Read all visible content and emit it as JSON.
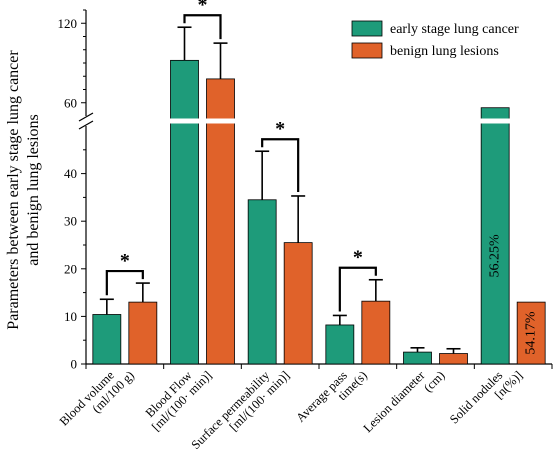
{
  "chart_data": {
    "type": "bar",
    "ylabel_lines": [
      "Parameters between early stage lung cancer",
      "and benign lung lesions"
    ],
    "y_axis": {
      "lower_range": [
        0,
        50
      ],
      "upper_range": [
        50,
        130
      ],
      "break_at": 50,
      "lower_ticks": [
        0,
        10,
        20,
        30,
        40
      ],
      "upper_ticks": [
        60,
        120
      ]
    },
    "categories": [
      {
        "lines": [
          "Blood volume",
          "(ml/100 g)"
        ]
      },
      {
        "lines": [
          "Blood Flow",
          "[ml/(100· min)]"
        ]
      },
      {
        "lines": [
          "Surface permeability",
          "[ml/(100· min)]"
        ]
      },
      {
        "lines": [
          "Average pass",
          "time(s)"
        ]
      },
      {
        "lines": [
          "Lesion diameter",
          "(cm)"
        ]
      },
      {
        "lines": [
          "Solid nodules",
          "[n(%)]"
        ]
      }
    ],
    "series": [
      {
        "name": "early stage lung cancer",
        "color": "#1e9b7a",
        "values": [
          10.4,
          92,
          34.5,
          8.2,
          2.5,
          56.25
        ],
        "errors": [
          3.2,
          25,
          10.2,
          2.0,
          0.9,
          null
        ]
      },
      {
        "name": "benign lung lesions",
        "color": "#e0622a",
        "values": [
          13.0,
          78,
          25.5,
          13.2,
          2.2,
          13.0
        ],
        "errors": [
          4.0,
          27,
          9.8,
          4.5,
          1.0,
          null
        ]
      }
    ],
    "bar_labels": [
      {
        "category_index": 5,
        "series_index": 0,
        "text": "56.25%"
      },
      {
        "category_index": 5,
        "series_index": 1,
        "text": "54.17%"
      }
    ],
    "significance": [
      {
        "category_index": 0,
        "symbol": "*"
      },
      {
        "category_index": 1,
        "symbol": "*"
      },
      {
        "category_index": 2,
        "symbol": "*"
      },
      {
        "category_index": 3,
        "symbol": "*"
      }
    ],
    "legend": {
      "position": "top-right"
    }
  }
}
